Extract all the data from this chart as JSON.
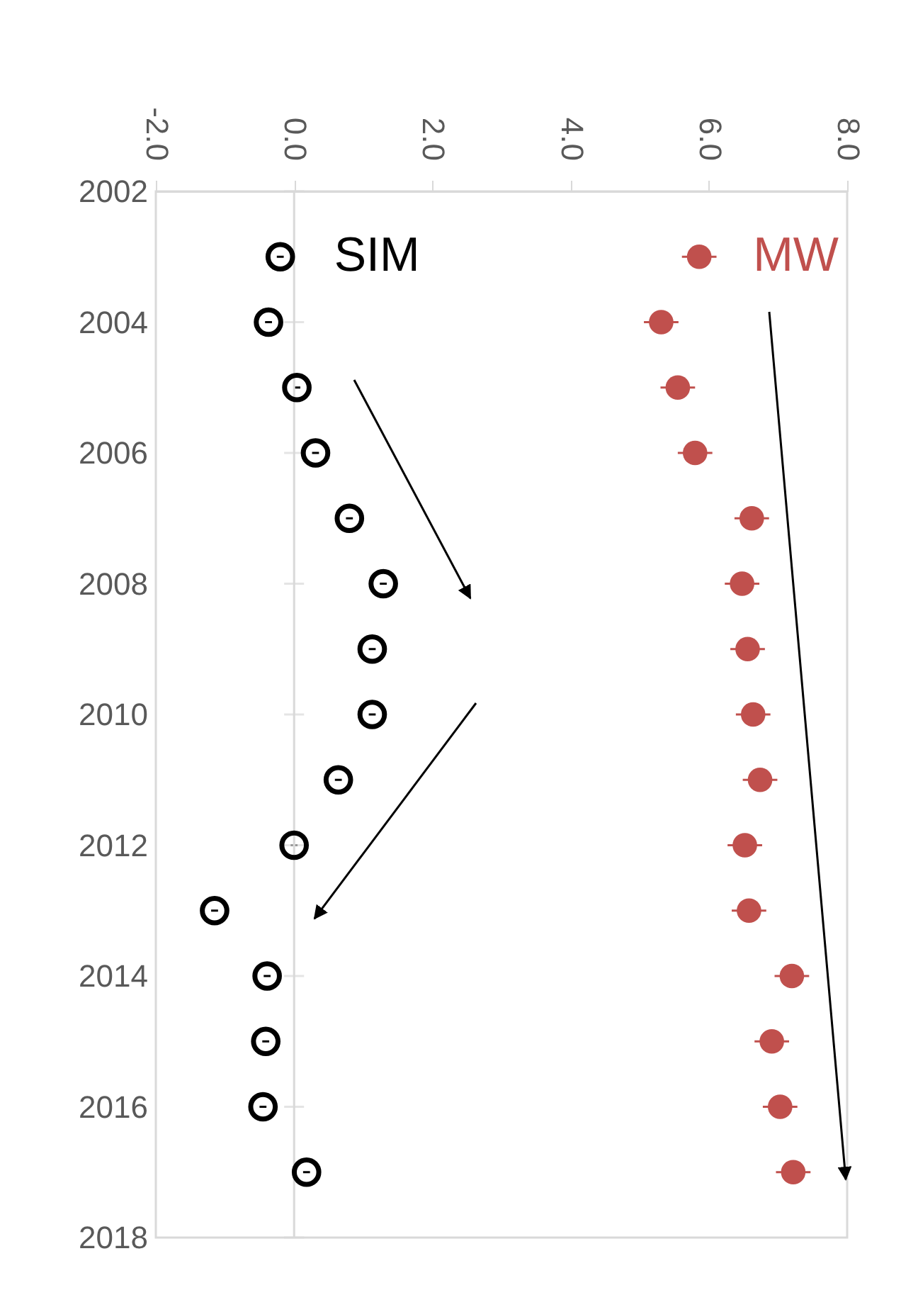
{
  "chart_data": {
    "type": "scatter",
    "x": [
      2003,
      2004,
      2005,
      2006,
      2007,
      2008,
      2009,
      2010,
      2011,
      2012,
      2013,
      2014,
      2015,
      2016,
      2017
    ],
    "series": [
      {
        "name": "SIM",
        "color": "#000000",
        "marker": "circle",
        "values": [
          -0.2,
          -0.37,
          0.04,
          0.31,
          0.8,
          1.29,
          1.13,
          1.13,
          0.64,
          0.0,
          -1.15,
          -0.39,
          -0.41,
          -0.45,
          0.18
        ],
        "errors": [
          0.05,
          0.05,
          0.05,
          0.05,
          0.05,
          0.05,
          0.05,
          0.05,
          0.05,
          0.05,
          0.05,
          0.05,
          0.05,
          0.05,
          0.05
        ]
      },
      {
        "name": "MW",
        "color": "#c0504d",
        "marker": "circle",
        "values": [
          5.86,
          5.31,
          5.55,
          5.8,
          6.62,
          6.48,
          6.56,
          6.64,
          6.74,
          6.52,
          6.58,
          7.2,
          6.91,
          7.03,
          7.22
        ],
        "errors": [
          0.25,
          0.25,
          0.25,
          0.25,
          0.25,
          0.25,
          0.25,
          0.25,
          0.25,
          0.25,
          0.25,
          0.25,
          0.25,
          0.25,
          0.25
        ]
      }
    ],
    "orientation": "horizontal",
    "xlim": [
      -2,
      8
    ],
    "xticks": [
      {
        "value": -2,
        "label": "-2.0"
      },
      {
        "value": 0,
        "label": "0.0"
      },
      {
        "value": 2,
        "label": "2.0"
      },
      {
        "value": 4,
        "label": "4.0"
      },
      {
        "value": 6,
        "label": "6.0"
      },
      {
        "value": 8,
        "label": "8.0"
      }
    ],
    "ylim": [
      2018,
      2002
    ],
    "yticks": [
      2002,
      2004,
      2006,
      2008,
      2010,
      2012,
      2014,
      2016,
      2018
    ],
    "ref_lines": [
      {
        "axis": "x",
        "value": 0
      }
    ],
    "grid": false,
    "legend": false
  }
}
